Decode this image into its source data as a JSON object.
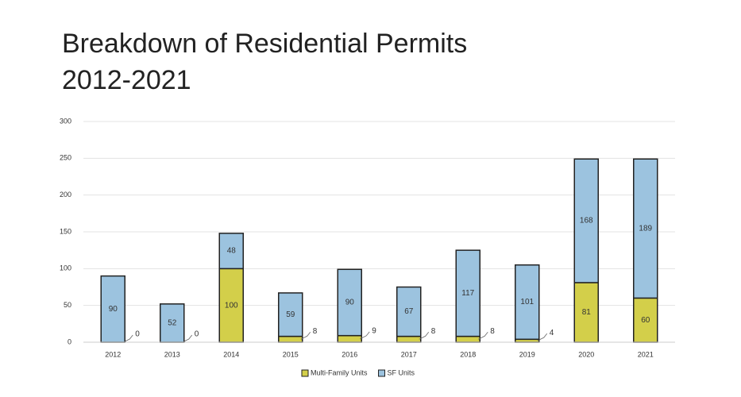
{
  "chart_data": {
    "type": "stacked_bar",
    "title": "Breakdown of Residential Permits",
    "subtitle": "2012-2021",
    "categories": [
      "2012",
      "2013",
      "2014",
      "2015",
      "2016",
      "2017",
      "2018",
      "2019",
      "2020",
      "2021"
    ],
    "series": [
      {
        "name": "Multi-Family Units",
        "color": "#d3cf4a",
        "values": [
          0,
          0,
          100,
          8,
          9,
          8,
          8,
          4,
          81,
          60
        ]
      },
      {
        "name": "SF Units",
        "color": "#9cc3df",
        "values": [
          90,
          52,
          48,
          59,
          90,
          67,
          117,
          101,
          168,
          189
        ]
      }
    ],
    "ylim": [
      0,
      300
    ],
    "yticks": [
      0,
      50,
      100,
      150,
      200,
      250,
      300
    ],
    "grid": true,
    "legend": "bottom"
  }
}
